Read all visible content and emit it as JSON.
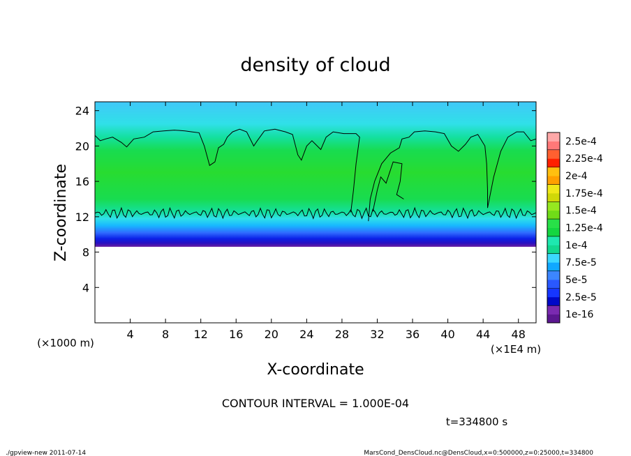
{
  "chart_data": {
    "type": "heatmap",
    "title": "density of cloud",
    "xlabel": "X-coordinate",
    "ylabel": "Z-coordinate",
    "x_scale_label": "(×1E4 m)",
    "y_scale_label": "(×1000 m)",
    "xlim": [
      0,
      50
    ],
    "ylim": [
      0,
      25
    ],
    "x_ticks": [
      4,
      8,
      12,
      16,
      20,
      24,
      28,
      32,
      36,
      40,
      44,
      48
    ],
    "y_ticks": [
      4,
      8,
      12,
      16,
      20,
      24
    ],
    "colorbar": {
      "labels": [
        "1e-16",
        "2.5e-5",
        "5e-5",
        "7.5e-5",
        "1e-4",
        "1.25e-4",
        "1.5e-4",
        "1.75e-4",
        "2e-4",
        "2.25e-4",
        "2.5e-4"
      ],
      "colors": [
        "#6a1fa0",
        "#0b1fe6",
        "#2f6cff",
        "#18b8ff",
        "#14e0a0",
        "#18dc3c",
        "#7be21a",
        "#d8e010",
        "#ffb000",
        "#ff4010",
        "#ff8c8c"
      ],
      "band_shades": [
        [
          "#5b1790",
          "#7a2ab0"
        ],
        [
          "#0008c8",
          "#1636ff"
        ],
        [
          "#2a58ff",
          "#3c86ff"
        ],
        [
          "#10a8ff",
          "#3cd8ff"
        ],
        [
          "#12d890",
          "#1ee8b0"
        ],
        [
          "#14d640",
          "#28e048"
        ],
        [
          "#70dc18",
          "#96e820"
        ],
        [
          "#d0d808",
          "#f0e818"
        ],
        [
          "#ffa000",
          "#ffc010"
        ],
        [
          "#ff2000",
          "#ff6030"
        ],
        [
          "#ff7878",
          "#ffa8a8"
        ]
      ]
    },
    "field_profile": [
      {
        "z": 8.6,
        "color": "#6a1fa0"
      },
      {
        "z": 9.0,
        "color": "#2a10c0"
      },
      {
        "z": 9.5,
        "color": "#0b1fe6"
      },
      {
        "z": 10.2,
        "color": "#2f6cff"
      },
      {
        "z": 11.0,
        "color": "#18b8ff"
      },
      {
        "z": 11.8,
        "color": "#30e0e8"
      },
      {
        "z": 12.5,
        "color": "#14e0a0"
      },
      {
        "z": 14.0,
        "color": "#18dc50"
      },
      {
        "z": 17.0,
        "color": "#28dc30"
      },
      {
        "z": 19.5,
        "color": "#18dc50"
      },
      {
        "z": 21.0,
        "color": "#14e0a0"
      },
      {
        "z": 22.5,
        "color": "#30e0e8"
      },
      {
        "z": 25.0,
        "color": "#40c8f8"
      }
    ],
    "cloud_top_contour": [
      [
        0.0,
        21.2
      ],
      [
        0.6,
        20.6
      ],
      [
        1.2,
        20.8
      ],
      [
        2.0,
        21.0
      ],
      [
        3.0,
        20.4
      ],
      [
        3.6,
        19.9
      ],
      [
        4.4,
        20.8
      ],
      [
        5.6,
        21.0
      ],
      [
        6.6,
        21.6
      ],
      [
        7.8,
        21.7
      ],
      [
        9.0,
        21.8
      ],
      [
        10.2,
        21.7
      ],
      [
        11.0,
        21.6
      ],
      [
        11.8,
        21.5
      ],
      [
        12.4,
        20.0
      ],
      [
        13.0,
        17.8
      ],
      [
        13.6,
        18.2
      ],
      [
        14.0,
        19.8
      ],
      [
        14.6,
        20.2
      ],
      [
        15.0,
        21.0
      ],
      [
        15.6,
        21.6
      ],
      [
        16.4,
        21.9
      ],
      [
        17.2,
        21.6
      ],
      [
        18.0,
        20.0
      ],
      [
        18.4,
        20.6
      ],
      [
        19.2,
        21.7
      ],
      [
        20.4,
        21.9
      ],
      [
        21.6,
        21.6
      ],
      [
        22.4,
        21.3
      ],
      [
        23.0,
        19.0
      ],
      [
        23.4,
        18.4
      ],
      [
        24.0,
        20.0
      ],
      [
        24.6,
        20.6
      ],
      [
        25.0,
        20.2
      ],
      [
        25.6,
        19.6
      ],
      [
        26.2,
        21.0
      ],
      [
        27.0,
        21.6
      ],
      [
        28.2,
        21.4
      ],
      [
        29.6,
        21.4
      ],
      [
        30.0,
        21.0
      ],
      [
        29.6,
        18.0
      ],
      [
        29.3,
        15.0
      ],
      [
        29.0,
        12.5
      ]
    ],
    "right_contour": [
      [
        31.0,
        11.5
      ],
      [
        31.2,
        14.0
      ],
      [
        31.7,
        16.0
      ],
      [
        32.5,
        18.0
      ],
      [
        33.5,
        19.2
      ],
      [
        34.5,
        19.8
      ],
      [
        34.8,
        20.8
      ],
      [
        35.6,
        21.0
      ],
      [
        36.2,
        21.6
      ],
      [
        37.4,
        21.7
      ],
      [
        38.6,
        21.6
      ],
      [
        39.6,
        21.4
      ],
      [
        40.4,
        20.0
      ],
      [
        41.2,
        19.4
      ],
      [
        42.0,
        20.2
      ],
      [
        42.6,
        21.0
      ],
      [
        43.4,
        21.3
      ],
      [
        44.2,
        20.0
      ],
      [
        44.4,
        18.0
      ],
      [
        44.5,
        15.0
      ],
      [
        44.5,
        13.0
      ],
      [
        45.2,
        16.5
      ],
      [
        46.0,
        19.4
      ],
      [
        46.8,
        21.0
      ],
      [
        47.8,
        21.6
      ],
      [
        48.6,
        21.6
      ],
      [
        49.4,
        20.6
      ],
      [
        50.0,
        20.8
      ]
    ],
    "inner_contour": [
      [
        31.5,
        12.6
      ],
      [
        32.0,
        15.0
      ],
      [
        32.4,
        16.5
      ],
      [
        33.0,
        15.8
      ],
      [
        33.8,
        18.2
      ],
      [
        34.8,
        18.0
      ],
      [
        34.6,
        16.0
      ],
      [
        34.2,
        14.5
      ],
      [
        35.0,
        14.0
      ]
    ],
    "base_contour_z": 12.4
  },
  "plot": {
    "contour_interval": "CONTOUR INTERVAL = 1.000E-04",
    "time_label": "t=334800 s"
  },
  "footer": {
    "left": "./gpview-new  2011-07-14",
    "right": "MarsCond_DensCloud.nc@DensCloud,x=0:500000,z=0:25000,t=334800"
  }
}
